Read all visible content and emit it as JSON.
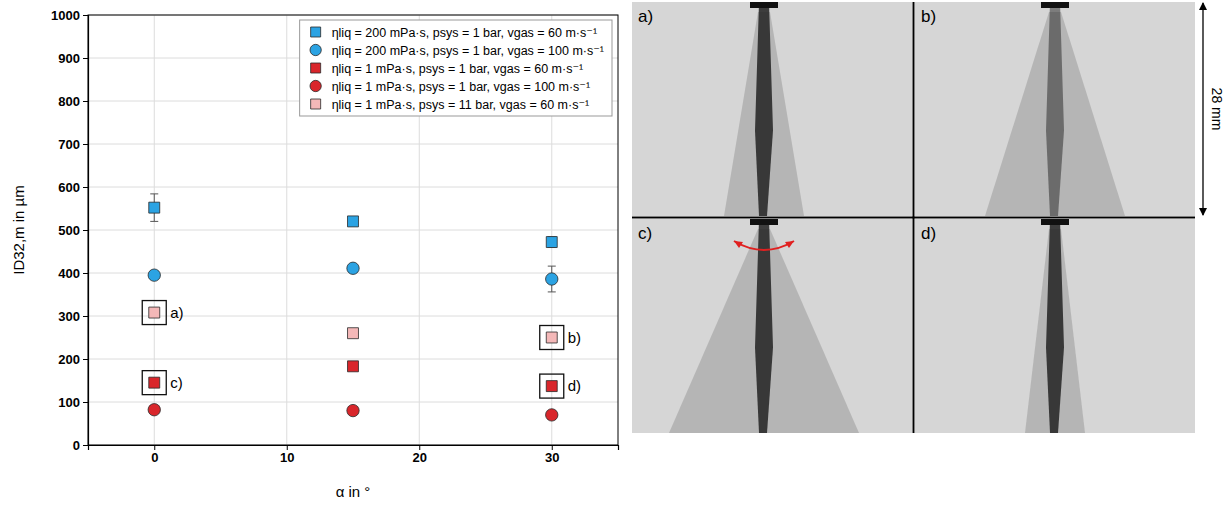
{
  "chart_data": {
    "type": "scatter",
    "xlabel": "α in °",
    "ylabel": "ID32,m in µm",
    "xlim": [
      -5,
      35
    ],
    "xticks": [
      0,
      10,
      20,
      30
    ],
    "ylim": [
      0,
      1000
    ],
    "yticks": [
      0,
      100,
      200,
      300,
      400,
      500,
      600,
      700,
      800,
      900,
      1000
    ],
    "grid": true,
    "legend": "upper right",
    "x": [
      0,
      15,
      30
    ],
    "series": [
      {
        "name": "ηliq = 200 mPa·s, psys = 1 bar, vgas = 60 m·s⁻¹",
        "color": "#2ba3e3",
        "marker": "square",
        "values": [
          552,
          520,
          472
        ],
        "errors": [
          32,
          10,
          12
        ]
      },
      {
        "name": "ηliq = 200 mPa·s, psys = 1 bar, vgas = 100 m·s⁻¹",
        "color": "#2ba3e3",
        "marker": "circle",
        "values": [
          395,
          411,
          386
        ],
        "errors": [
          8,
          8,
          30
        ]
      },
      {
        "name": "ηliq = 1 mPa·s, psys = 1 bar, vgas = 60 m·s⁻¹",
        "color": "#d9262b",
        "marker": "square",
        "values": [
          145,
          183,
          137
        ],
        "errors": [
          6,
          6,
          6
        ]
      },
      {
        "name": "ηliq = 1 mPa·s, psys = 1 bar, vgas = 100 m·s⁻¹",
        "color": "#d9262b",
        "marker": "circle",
        "values": [
          82,
          80,
          70
        ],
        "errors": [
          4,
          4,
          4
        ]
      },
      {
        "name": "ηliq = 1 mPa·s, psys = 11 bar, vgas = 60 m·s⁻¹",
        "color": "#f4b8b8",
        "marker": "square",
        "values": [
          308,
          260,
          250
        ],
        "errors": [
          10,
          6,
          6
        ]
      }
    ],
    "annotations": [
      {
        "text": "a)",
        "x": 0,
        "y": 308
      },
      {
        "text": "c)",
        "x": 0,
        "y": 145
      },
      {
        "text": "b)",
        "x": 30,
        "y": 250
      },
      {
        "text": "d)",
        "x": 30,
        "y": 137
      }
    ]
  },
  "panels": {
    "labels": [
      "a)",
      "b)",
      "c)",
      "d)"
    ],
    "scale_label": "28 mm"
  }
}
